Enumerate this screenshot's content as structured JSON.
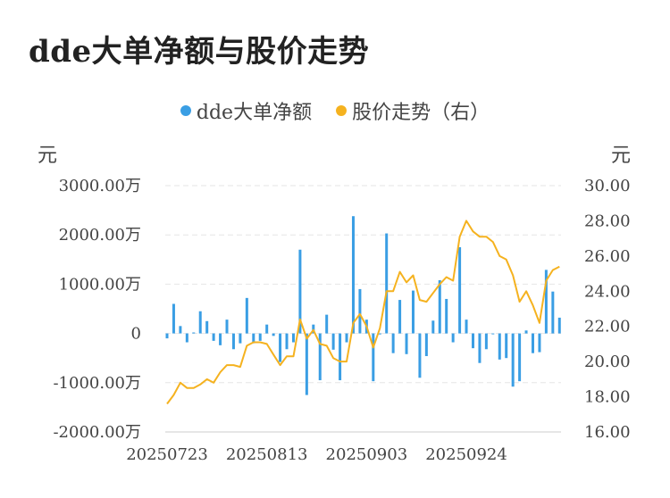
{
  "title": "dde大单净额与股价走势",
  "legend": {
    "series1": "dde大单净额",
    "series2": "股价走势（右）"
  },
  "units": {
    "left": "元",
    "right": "元"
  },
  "colors": {
    "bar": "#3a9ee4",
    "line": "#f5b21f",
    "grid": "#e6e6e6",
    "axis": "#cccccc"
  },
  "chart_data": {
    "type": "bar+line",
    "x_tick_labels": [
      "20250723",
      "20250813",
      "20250903",
      "20250924"
    ],
    "x_tick_indices": [
      0,
      15,
      30,
      45
    ],
    "y_left": {
      "ticks": [
        3000,
        2000,
        1000,
        0,
        -1000,
        -2000
      ],
      "tick_labels": [
        "3000.00万",
        "2000.00万",
        "1000.00万",
        "0",
        "-1000.00万",
        "-2000.00万"
      ],
      "ylim": [
        -2000,
        3000
      ]
    },
    "y_right": {
      "ticks": [
        30,
        28,
        26,
        24,
        22,
        20,
        18,
        16
      ],
      "tick_labels": [
        "30.00",
        "28.00",
        "26.00",
        "24.00",
        "22.00",
        "20.00",
        "18.00",
        "16.00"
      ],
      "ylim": [
        16,
        30
      ]
    },
    "series": [
      {
        "name": "dde大单净额",
        "type": "bar",
        "unit": "万元",
        "values": [
          -100,
          600,
          150,
          -180,
          20,
          450,
          250,
          -150,
          -240,
          280,
          -320,
          -200,
          720,
          -200,
          -150,
          180,
          -50,
          -580,
          -320,
          -180,
          1700,
          -1250,
          180,
          -950,
          380,
          -330,
          -950,
          -180,
          2380,
          900,
          280,
          -970,
          -20,
          2030,
          -400,
          680,
          -420,
          870,
          -900,
          -460,
          260,
          1080,
          700,
          -180,
          1750,
          280,
          -300,
          -600,
          -320,
          0,
          -530,
          -500,
          -1080,
          -970,
          60,
          -400,
          -380,
          1290,
          850,
          320
        ]
      },
      {
        "name": "股价走势（右）",
        "type": "line",
        "unit": "元",
        "values": [
          17.6,
          18.1,
          18.8,
          18.5,
          18.5,
          18.7,
          19.0,
          18.8,
          19.4,
          19.8,
          19.8,
          19.7,
          20.9,
          21.1,
          21.1,
          21.0,
          20.4,
          19.8,
          20.3,
          20.3,
          22.4,
          21.3,
          21.8,
          21.0,
          20.9,
          20.2,
          20.0,
          20.0,
          22.2,
          22.7,
          22.0,
          20.8,
          21.9,
          24.0,
          24.0,
          25.1,
          24.5,
          24.9,
          23.5,
          23.4,
          23.9,
          24.4,
          24.8,
          24.6,
          27.1,
          28.0,
          27.4,
          27.1,
          27.1,
          26.8,
          26.0,
          25.8,
          24.9,
          23.4,
          24.0,
          23.2,
          22.2,
          24.6,
          25.2,
          25.4
        ]
      }
    ]
  }
}
